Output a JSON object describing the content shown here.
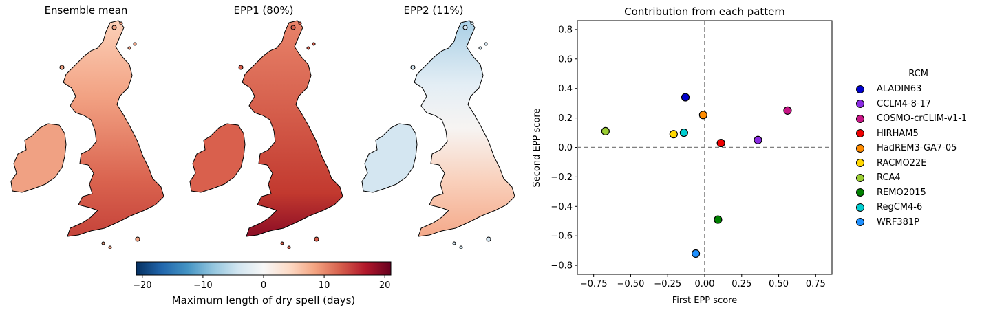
{
  "maps": [
    {
      "title": "Ensemble mean",
      "style": "mean"
    },
    {
      "title": "EPP1 (80%)",
      "style": "epp1"
    },
    {
      "title": "EPP2 (11%)",
      "style": "epp2"
    }
  ],
  "colorbar": {
    "label": "Maximum length of dry spell (days)",
    "ticks": [
      "−20",
      "−10",
      "0",
      "10",
      "20"
    ],
    "tick_values": [
      -20,
      -10,
      0,
      10,
      20
    ],
    "range": [
      -21,
      21
    ],
    "colormap": [
      "#053061",
      "#2166ac",
      "#4393c3",
      "#92c5de",
      "#d1e5f0",
      "#f7f7f7",
      "#fddbc7",
      "#f4a582",
      "#d6604d",
      "#b2182b",
      "#67001f"
    ]
  },
  "chart_data": {
    "type": "scatter",
    "title": "Contribution from each pattern",
    "xlabel": "First EPP score",
    "ylabel": "Second EPP score",
    "xlim": [
      -0.86,
      0.86
    ],
    "ylim": [
      -0.86,
      0.86
    ],
    "xticks": [
      -0.75,
      -0.5,
      -0.25,
      0.0,
      0.25,
      0.5,
      0.75
    ],
    "xtick_labels": [
      "−0.75",
      "−0.50",
      "−0.25",
      "0.00",
      "0.25",
      "0.50",
      "0.75"
    ],
    "yticks": [
      -0.8,
      -0.6,
      -0.4,
      -0.2,
      0.0,
      0.2,
      0.4,
      0.6,
      0.8
    ],
    "ytick_labels": [
      "−0.8",
      "−0.6",
      "−0.4",
      "−0.2",
      "0.0",
      "0.2",
      "0.4",
      "0.6",
      "0.8"
    ],
    "reference_lines": {
      "x": 0,
      "y": 0,
      "style": "dashed"
    },
    "legend": {
      "title": "RCM",
      "placement": "outside-right"
    },
    "series": [
      {
        "name": "ALADIN63",
        "color": "#0000cd",
        "x": -0.13,
        "y": 0.34
      },
      {
        "name": "CCLM4-8-17",
        "color": "#8a2be2",
        "x": 0.36,
        "y": 0.05
      },
      {
        "name": "COSMO-crCLIM-v1-1",
        "color": "#c71585",
        "x": 0.56,
        "y": 0.25
      },
      {
        "name": "HIRHAM5",
        "color": "#ee0000",
        "x": 0.11,
        "y": 0.03
      },
      {
        "name": "HadREM3-GA7-05",
        "color": "#ff8c00",
        "x": -0.01,
        "y": 0.22
      },
      {
        "name": "RACMO22E",
        "color": "#ffd700",
        "x": -0.21,
        "y": 0.09
      },
      {
        "name": "RCA4",
        "color": "#9acd32",
        "x": -0.67,
        "y": 0.11
      },
      {
        "name": "REMO2015",
        "color": "#008000",
        "x": 0.09,
        "y": -0.49
      },
      {
        "name": "RegCM4-6",
        "color": "#00ced1",
        "x": -0.14,
        "y": 0.1
      },
      {
        "name": "WRF381P",
        "color": "#1e90ff",
        "x": -0.06,
        "y": -0.72
      }
    ]
  }
}
